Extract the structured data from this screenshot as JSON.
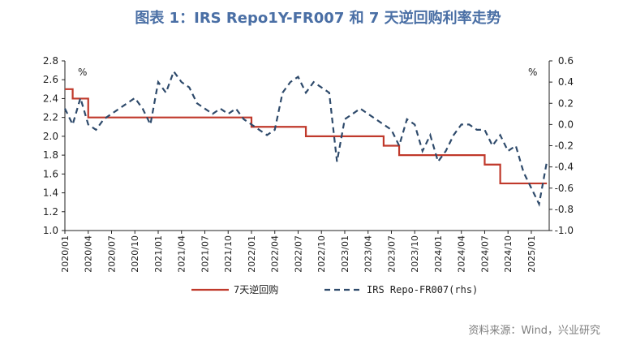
{
  "title": "图表 1：IRS Repo1Y-FR007 和 7 天逆回购利率走势",
  "source": "资料来源：Wind，兴业研究",
  "chart_data": {
    "type": "line",
    "left_unit": "%",
    "right_unit": "%",
    "left_axis": {
      "min": 1.0,
      "max": 2.8,
      "ticks": [
        "1.0",
        "1.2",
        "1.4",
        "1.6",
        "1.8",
        "2.0",
        "2.2",
        "2.4",
        "2.6",
        "2.8"
      ]
    },
    "right_axis": {
      "min": -1.0,
      "max": 0.6,
      "ticks": [
        "-1.0",
        "-0.8",
        "-0.6",
        "-0.4",
        "-0.2",
        "0.0",
        "0.2",
        "0.4",
        "0.6"
      ]
    },
    "x_labels": [
      "2020/01",
      "2020/04",
      "2020/07",
      "2020/10",
      "2021/01",
      "2021/04",
      "2021/07",
      "2021/10",
      "2022/01",
      "2022/04",
      "2022/07",
      "2022/10",
      "2023/01",
      "2023/04",
      "2023/07",
      "2023/10",
      "2024/01",
      "2024/04",
      "2024/07",
      "2024/10",
      "2025/01"
    ],
    "series": [
      {
        "name": "7天逆回购",
        "axis": "left",
        "color": "#c0392b",
        "style": "step",
        "points": [
          [
            "2020/01",
            2.5
          ],
          [
            "2020/02",
            2.4
          ],
          [
            "2020/04",
            2.2
          ],
          [
            "2022/01",
            2.1
          ],
          [
            "2022/08",
            2.0
          ],
          [
            "2023/06",
            1.9
          ],
          [
            "2023/08",
            1.8
          ],
          [
            "2024/07",
            1.7
          ],
          [
            "2024/09",
            1.5
          ],
          [
            "2025/03",
            1.5
          ]
        ]
      },
      {
        "name": "IRS Repo-FR007(rhs)",
        "axis": "right",
        "color": "#2e4a6b",
        "style": "dashed",
        "points": [
          [
            "2020/01",
            0.15
          ],
          [
            "2020/02",
            0.0
          ],
          [
            "2020/03",
            0.25
          ],
          [
            "2020/04",
            0.0
          ],
          [
            "2020/05",
            -0.05
          ],
          [
            "2020/06",
            0.05
          ],
          [
            "2020/07",
            0.1
          ],
          [
            "2020/08",
            0.15
          ],
          [
            "2020/09",
            0.2
          ],
          [
            "2020/10",
            0.25
          ],
          [
            "2020/11",
            0.15
          ],
          [
            "2020/12",
            0.0
          ],
          [
            "2021/01",
            0.4
          ],
          [
            "2021/02",
            0.3
          ],
          [
            "2021/03",
            0.5
          ],
          [
            "2021/04",
            0.4
          ],
          [
            "2021/05",
            0.35
          ],
          [
            "2021/06",
            0.2
          ],
          [
            "2021/07",
            0.15
          ],
          [
            "2021/08",
            0.1
          ],
          [
            "2021/09",
            0.15
          ],
          [
            "2021/10",
            0.1
          ],
          [
            "2021/11",
            0.15
          ],
          [
            "2021/12",
            0.05
          ],
          [
            "2022/01",
            0.0
          ],
          [
            "2022/02",
            -0.05
          ],
          [
            "2022/03",
            -0.1
          ],
          [
            "2022/04",
            -0.05
          ],
          [
            "2022/05",
            0.3
          ],
          [
            "2022/06",
            0.4
          ],
          [
            "2022/07",
            0.45
          ],
          [
            "2022/08",
            0.3
          ],
          [
            "2022/09",
            0.4
          ],
          [
            "2022/10",
            0.35
          ],
          [
            "2022/11",
            0.3
          ],
          [
            "2022/12",
            -0.35
          ],
          [
            "2023/01",
            0.05
          ],
          [
            "2023/02",
            0.1
          ],
          [
            "2023/03",
            0.15
          ],
          [
            "2023/04",
            0.1
          ],
          [
            "2023/05",
            0.05
          ],
          [
            "2023/06",
            0.0
          ],
          [
            "2023/07",
            -0.05
          ],
          [
            "2023/08",
            -0.2
          ],
          [
            "2023/09",
            0.05
          ],
          [
            "2023/10",
            0.0
          ],
          [
            "2023/11",
            -0.25
          ],
          [
            "2023/12",
            -0.1
          ],
          [
            "2024/01",
            -0.35
          ],
          [
            "2024/02",
            -0.25
          ],
          [
            "2024/03",
            -0.1
          ],
          [
            "2024/04",
            0.0
          ],
          [
            "2024/05",
            0.0
          ],
          [
            "2024/06",
            -0.05
          ],
          [
            "2024/07",
            -0.05
          ],
          [
            "2024/08",
            -0.2
          ],
          [
            "2024/09",
            -0.1
          ],
          [
            "2024/10",
            -0.25
          ],
          [
            "2024/11",
            -0.2
          ],
          [
            "2024/12",
            -0.45
          ],
          [
            "2025/01",
            -0.6
          ],
          [
            "2025/02",
            -0.75
          ],
          [
            "2025/03",
            -0.35
          ]
        ]
      }
    ]
  }
}
